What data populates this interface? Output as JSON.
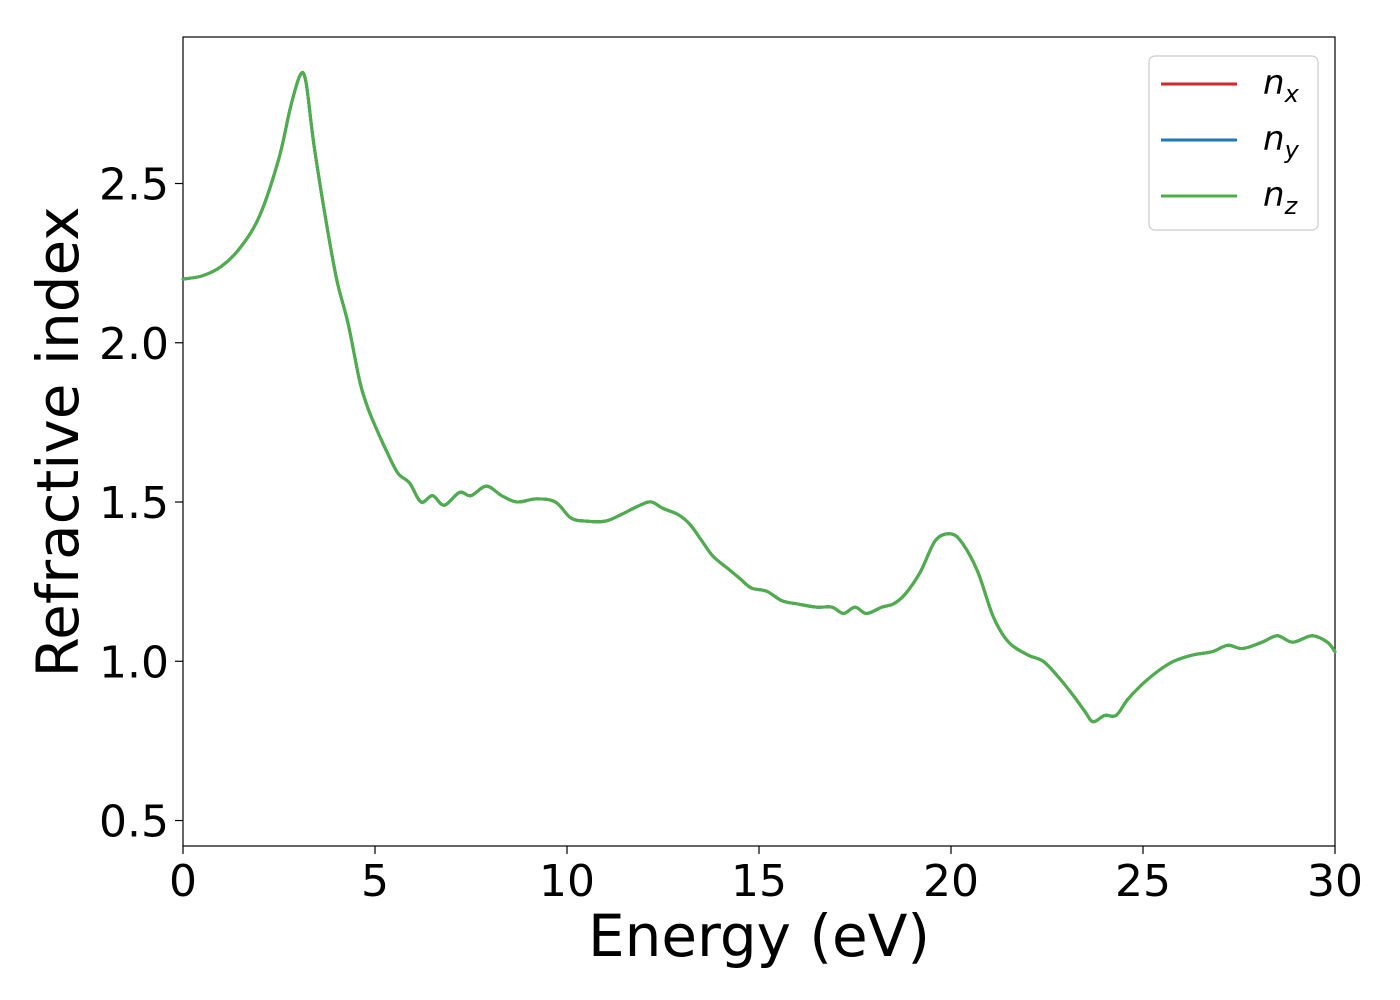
{
  "chart_data": {
    "type": "line",
    "title": "",
    "xlabel": "Energy (eV)",
    "ylabel": "Refractive index",
    "xlim": [
      0,
      30
    ],
    "ylim": [
      0.42,
      2.96
    ],
    "xticks": [
      0,
      5,
      10,
      15,
      20,
      25,
      30
    ],
    "xtick_labels": [
      "0",
      "5",
      "10",
      "15",
      "20",
      "25",
      "30"
    ],
    "yticks": [
      0.5,
      1.0,
      1.5,
      2.0,
      2.5
    ],
    "ytick_labels": [
      "0.5",
      "1.0",
      "1.5",
      "2.0",
      "2.5"
    ],
    "grid": false,
    "legend_position": "top-right",
    "x": [
      0,
      0.5,
      1.0,
      1.5,
      2.0,
      2.5,
      2.8,
      3.05,
      3.2,
      3.4,
      3.7,
      4.0,
      4.3,
      4.6,
      4.8,
      5.0,
      5.3,
      5.6,
      5.9,
      6.2,
      6.5,
      6.8,
      7.2,
      7.5,
      7.9,
      8.3,
      8.7,
      9.2,
      9.7,
      10.1,
      10.5,
      11.0,
      11.4,
      11.9,
      12.2,
      12.5,
      12.9,
      13.2,
      13.5,
      13.8,
      14.2,
      14.5,
      14.8,
      15.2,
      15.6,
      16.0,
      16.5,
      16.9,
      17.2,
      17.5,
      17.8,
      18.2,
      18.5,
      18.8,
      19.2,
      19.6,
      20.0,
      20.3,
      20.7,
      21.1,
      21.5,
      22.0,
      22.4,
      22.8,
      23.2,
      23.5,
      23.7,
      24.0,
      24.3,
      24.6,
      25.0,
      25.4,
      25.8,
      26.3,
      26.8,
      27.2,
      27.6,
      28.1,
      28.5,
      28.9,
      29.4,
      29.8,
      30.0
    ],
    "series": [
      {
        "name": "n_x",
        "color": "#d62728",
        "values": [
          2.2,
          2.21,
          2.24,
          2.3,
          2.4,
          2.58,
          2.74,
          2.84,
          2.82,
          2.63,
          2.4,
          2.2,
          2.06,
          1.88,
          1.8,
          1.74,
          1.66,
          1.59,
          1.56,
          1.5,
          1.52,
          1.49,
          1.53,
          1.52,
          1.55,
          1.52,
          1.5,
          1.51,
          1.5,
          1.45,
          1.44,
          1.44,
          1.46,
          1.49,
          1.5,
          1.48,
          1.46,
          1.43,
          1.38,
          1.33,
          1.29,
          1.26,
          1.23,
          1.22,
          1.19,
          1.18,
          1.17,
          1.17,
          1.15,
          1.17,
          1.15,
          1.17,
          1.18,
          1.21,
          1.28,
          1.38,
          1.4,
          1.37,
          1.28,
          1.14,
          1.06,
          1.02,
          1.0,
          0.95,
          0.89,
          0.84,
          0.81,
          0.83,
          0.83,
          0.88,
          0.93,
          0.97,
          1.0,
          1.02,
          1.03,
          1.05,
          1.04,
          1.06,
          1.08,
          1.06,
          1.08,
          1.06,
          1.03
        ]
      },
      {
        "name": "n_y",
        "color": "#1f77b4",
        "values": [
          2.2,
          2.21,
          2.24,
          2.3,
          2.4,
          2.58,
          2.74,
          2.84,
          2.82,
          2.63,
          2.4,
          2.2,
          2.06,
          1.88,
          1.8,
          1.74,
          1.66,
          1.59,
          1.56,
          1.5,
          1.52,
          1.49,
          1.53,
          1.52,
          1.55,
          1.52,
          1.5,
          1.51,
          1.5,
          1.45,
          1.44,
          1.44,
          1.46,
          1.49,
          1.5,
          1.48,
          1.46,
          1.43,
          1.38,
          1.33,
          1.29,
          1.26,
          1.23,
          1.22,
          1.19,
          1.18,
          1.17,
          1.17,
          1.15,
          1.17,
          1.15,
          1.17,
          1.18,
          1.21,
          1.28,
          1.38,
          1.4,
          1.37,
          1.28,
          1.14,
          1.06,
          1.02,
          1.0,
          0.95,
          0.89,
          0.84,
          0.81,
          0.83,
          0.83,
          0.88,
          0.93,
          0.97,
          1.0,
          1.02,
          1.03,
          1.05,
          1.04,
          1.06,
          1.08,
          1.06,
          1.08,
          1.06,
          1.03
        ]
      },
      {
        "name": "n_z",
        "color": "#4daf4a",
        "values": [
          2.2,
          2.21,
          2.24,
          2.3,
          2.4,
          2.58,
          2.74,
          2.84,
          2.82,
          2.63,
          2.4,
          2.2,
          2.06,
          1.88,
          1.8,
          1.74,
          1.66,
          1.59,
          1.56,
          1.5,
          1.52,
          1.49,
          1.53,
          1.52,
          1.55,
          1.52,
          1.5,
          1.51,
          1.5,
          1.45,
          1.44,
          1.44,
          1.46,
          1.49,
          1.5,
          1.48,
          1.46,
          1.43,
          1.38,
          1.33,
          1.29,
          1.26,
          1.23,
          1.22,
          1.19,
          1.18,
          1.17,
          1.17,
          1.15,
          1.17,
          1.15,
          1.17,
          1.18,
          1.21,
          1.28,
          1.38,
          1.4,
          1.37,
          1.28,
          1.14,
          1.06,
          1.02,
          1.0,
          0.95,
          0.89,
          0.84,
          0.81,
          0.83,
          0.83,
          0.88,
          0.93,
          0.97,
          1.0,
          1.02,
          1.03,
          1.05,
          1.04,
          1.06,
          1.08,
          1.06,
          1.08,
          1.06,
          1.03
        ]
      }
    ],
    "legend": [
      {
        "base": "n",
        "sub": "x",
        "color": "#d62728"
      },
      {
        "base": "n",
        "sub": "y",
        "color": "#1f77b4"
      },
      {
        "base": "n",
        "sub": "z",
        "color": "#4daf4a"
      }
    ]
  }
}
